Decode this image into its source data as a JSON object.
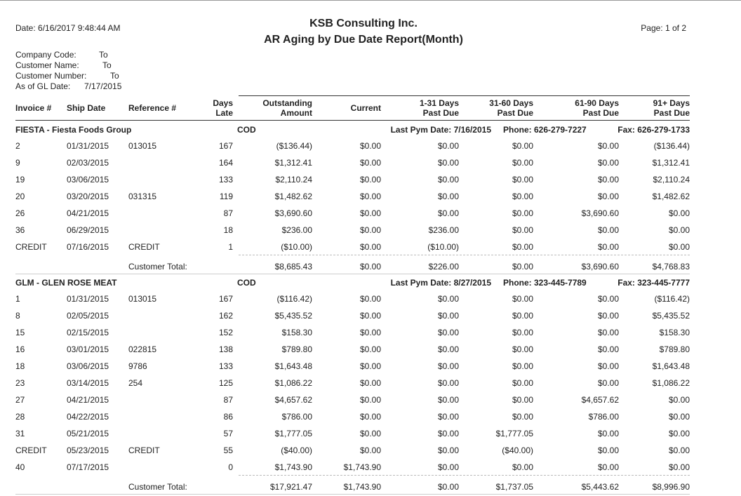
{
  "header": {
    "date": "Date: 6/16/2017 9:48:44 AM",
    "title": "KSB Consulting Inc.",
    "subtitle": "AR Aging by Due Date Report(Month)",
    "page": "Page: 1 of 2"
  },
  "filters": [
    {
      "label": "Company Code:",
      "value": "To"
    },
    {
      "label": "Customer Name:",
      "value": "To"
    },
    {
      "label": "Customer Number:",
      "value": "To"
    },
    {
      "label": "As of GL Date:",
      "value": "7/17/2015"
    }
  ],
  "columns": [
    [
      "Invoice #"
    ],
    [
      "Ship Date"
    ],
    [
      "Reference #"
    ],
    [
      "Days",
      "Late"
    ],
    [
      "Outstanding",
      "Amount"
    ],
    [
      "Current"
    ],
    [
      "1-31 Days",
      "Past Due"
    ],
    [
      "31-60 Days",
      "Past Due"
    ],
    [
      "61-90 Days",
      "Past Due"
    ],
    [
      "91+ Days",
      "Past Due"
    ]
  ],
  "groups": [
    {
      "name": "FIESTA - Fiesta Foods Group",
      "terms": "COD",
      "last_pym": "Last Pym Date: 7/16/2015",
      "phone": "Phone: 626-279-7227",
      "fax": "Fax: 626-279-1733",
      "rows": [
        [
          "2",
          "01/31/2015",
          "013015",
          "167",
          "($136.44)",
          "$0.00",
          "$0.00",
          "$0.00",
          "$0.00",
          "($136.44)"
        ],
        [
          "9",
          "02/03/2015",
          null,
          "164",
          "$1,312.41",
          "$0.00",
          "$0.00",
          "$0.00",
          "$0.00",
          "$1,312.41"
        ],
        [
          "19",
          "03/06/2015",
          null,
          "133",
          "$2,110.24",
          "$0.00",
          "$0.00",
          "$0.00",
          "$0.00",
          "$2,110.24"
        ],
        [
          "20",
          "03/20/2015",
          "031315",
          "119",
          "$1,482.62",
          "$0.00",
          "$0.00",
          "$0.00",
          "$0.00",
          "$1,482.62"
        ],
        [
          "26",
          "04/21/2015",
          null,
          "87",
          "$3,690.60",
          "$0.00",
          "$0.00",
          "$0.00",
          "$3,690.60",
          "$0.00"
        ],
        [
          "36",
          "06/29/2015",
          null,
          "18",
          "$236.00",
          "$0.00",
          "$236.00",
          "$0.00",
          "$0.00",
          "$0.00"
        ],
        [
          "CREDIT",
          "07/16/2015",
          "CREDIT",
          "1",
          "($10.00)",
          "$0.00",
          "($10.00)",
          "$0.00",
          "$0.00",
          "$0.00"
        ]
      ],
      "total_label": "Customer Total:",
      "totals": [
        "$8,685.43",
        "$0.00",
        "$226.00",
        "$0.00",
        "$3,690.60",
        "$4,768.83"
      ]
    },
    {
      "name": "GLM - GLEN ROSE MEAT",
      "terms": "COD",
      "last_pym": "Last Pym Date: 8/27/2015",
      "phone": "Phone: 323-445-7789",
      "fax": "Fax: 323-445-7777",
      "rows": [
        [
          "1",
          "01/31/2015",
          "013015",
          "167",
          "($116.42)",
          "$0.00",
          "$0.00",
          "$0.00",
          "$0.00",
          "($116.42)"
        ],
        [
          "8",
          "02/05/2015",
          null,
          "162",
          "$5,435.52",
          "$0.00",
          "$0.00",
          "$0.00",
          "$0.00",
          "$5,435.52"
        ],
        [
          "15",
          "02/15/2015",
          null,
          "152",
          "$158.30",
          "$0.00",
          "$0.00",
          "$0.00",
          "$0.00",
          "$158.30"
        ],
        [
          "16",
          "03/01/2015",
          "022815",
          "138",
          "$789.80",
          "$0.00",
          "$0.00",
          "$0.00",
          "$0.00",
          "$789.80"
        ],
        [
          "18",
          "03/06/2015",
          "9786",
          "133",
          "$1,643.48",
          "$0.00",
          "$0.00",
          "$0.00",
          "$0.00",
          "$1,643.48"
        ],
        [
          "23",
          "03/14/2015",
          "254",
          "125",
          "$1,086.22",
          "$0.00",
          "$0.00",
          "$0.00",
          "$0.00",
          "$1,086.22"
        ],
        [
          "27",
          "04/21/2015",
          null,
          "87",
          "$4,657.62",
          "$0.00",
          "$0.00",
          "$0.00",
          "$4,657.62",
          "$0.00"
        ],
        [
          "28",
          "04/22/2015",
          null,
          "86",
          "$786.00",
          "$0.00",
          "$0.00",
          "$0.00",
          "$786.00",
          "$0.00"
        ],
        [
          "31",
          "05/21/2015",
          null,
          "57",
          "$1,777.05",
          "$0.00",
          "$0.00",
          "$1,777.05",
          "$0.00",
          "$0.00"
        ],
        [
          "CREDIT",
          "05/23/2015",
          "CREDIT",
          "55",
          "($40.00)",
          "$0.00",
          "$0.00",
          "($40.00)",
          "$0.00",
          "$0.00"
        ],
        [
          "40",
          "07/17/2015",
          null,
          "0",
          "$1,743.90",
          "$1,743.90",
          "$0.00",
          "$0.00",
          "$0.00",
          "$0.00"
        ]
      ],
      "total_label": "Customer Total:",
      "totals": [
        "$17,921.47",
        "$1,743.90",
        "$0.00",
        "$1,737.05",
        "$5,443.62",
        "$8,996.90"
      ]
    }
  ]
}
